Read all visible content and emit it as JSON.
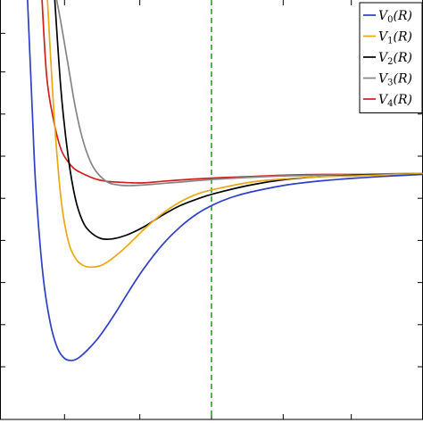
{
  "chart_data": {
    "type": "line",
    "title": "",
    "xlabel": "",
    "ylabel": "",
    "xlim": [
      0.0,
      11.8
    ],
    "ylim": [
      -5.0,
      1.0
    ],
    "grid": false,
    "legend_position": "top-right",
    "reference_line": {
      "x": 5.9,
      "style": "dashed",
      "color": "#2ca02c"
    },
    "x_ticks": [
      1.8,
      3.9,
      5.9,
      7.9,
      9.8
    ],
    "y_ticks": [
      0.5,
      -0.05,
      -0.65,
      -1.25,
      -1.85,
      -2.45,
      -3.05,
      -3.65,
      -4.25
    ],
    "series": [
      {
        "name": "V0(R)",
        "name_main": "V",
        "name_sub": "0",
        "name_arg": "(R)",
        "color": "#2c3fc8",
        "x": [
          0.75,
          0.9,
          1.0,
          1.2,
          1.4,
          1.6,
          1.8,
          2.0,
          2.2,
          2.5,
          2.8,
          3.2,
          3.6,
          4.0,
          4.5,
          5.0,
          5.5,
          6.0,
          6.5,
          7.0,
          8.0,
          9.0,
          10.0,
          11.0,
          11.8
        ],
        "y": [
          1.2,
          -0.6,
          -1.7,
          -2.95,
          -3.62,
          -3.98,
          -4.13,
          -4.16,
          -4.12,
          -3.98,
          -3.8,
          -3.5,
          -3.17,
          -2.86,
          -2.53,
          -2.27,
          -2.07,
          -1.93,
          -1.83,
          -1.76,
          -1.66,
          -1.6,
          -1.56,
          -1.53,
          -1.51
        ]
      },
      {
        "name": "V1(R)",
        "name_main": "V",
        "name_sub": "1",
        "name_arg": "(R)",
        "color": "#e8a912",
        "x": [
          1.3,
          1.5,
          1.7,
          1.9,
          2.1,
          2.3,
          2.5,
          2.8,
          3.1,
          3.5,
          4.0,
          4.5,
          5.0,
          5.5,
          6.0,
          7.0,
          8.0,
          9.0,
          10.0,
          11.0,
          11.8
        ],
        "y": [
          1.2,
          -0.6,
          -1.85,
          -2.45,
          -2.7,
          -2.8,
          -2.83,
          -2.81,
          -2.72,
          -2.55,
          -2.3,
          -2.08,
          -1.91,
          -1.79,
          -1.72,
          -1.62,
          -1.57,
          -1.54,
          -1.53,
          -1.51,
          -1.5
        ]
      },
      {
        "name": "V2(R)",
        "name_main": "V",
        "name_sub": "2",
        "name_arg": "(R)",
        "color": "#000000",
        "x": [
          1.5,
          1.7,
          1.9,
          2.1,
          2.3,
          2.5,
          2.8,
          3.1,
          3.5,
          4.0,
          4.5,
          5.0,
          5.5,
          6.0,
          7.0,
          8.0,
          9.0,
          10.0,
          11.0,
          11.8
        ],
        "y": [
          1.2,
          -0.3,
          -1.25,
          -1.85,
          -2.17,
          -2.32,
          -2.42,
          -2.43,
          -2.38,
          -2.26,
          -2.1,
          -1.96,
          -1.86,
          -1.78,
          -1.66,
          -1.58,
          -1.54,
          -1.52,
          -1.51,
          -1.5
        ]
      },
      {
        "name": "V3(R)",
        "name_main": "V",
        "name_sub": "3",
        "name_arg": "(R)",
        "color": "#848484",
        "x": [
          1.5,
          1.7,
          1.9,
          2.1,
          2.3,
          2.5,
          2.7,
          3.0,
          3.3,
          3.6,
          4.0,
          4.5,
          5.0,
          6.0,
          7.0,
          8.0,
          9.0,
          10.0,
          11.0,
          11.8
        ],
        "y": [
          1.2,
          0.65,
          0.05,
          -0.55,
          -1.0,
          -1.3,
          -1.48,
          -1.62,
          -1.66,
          -1.67,
          -1.66,
          -1.64,
          -1.62,
          -1.58,
          -1.55,
          -1.53,
          -1.52,
          -1.51,
          -1.5,
          -1.5
        ]
      },
      {
        "name": "V4(R)",
        "name_main": "V",
        "name_sub": "4",
        "name_arg": "(R)",
        "color": "#d11f1f",
        "x": [
          1.15,
          1.3,
          1.5,
          1.7,
          1.9,
          2.1,
          2.4,
          2.7,
          3.0,
          3.3,
          3.7,
          4.0,
          4.5,
          5.0,
          6.0,
          7.0,
          8.0,
          9.0,
          10.0,
          11.0,
          11.8
        ],
        "y": [
          1.2,
          -0.1,
          -0.75,
          -1.15,
          -1.33,
          -1.44,
          -1.52,
          -1.58,
          -1.61,
          -1.62,
          -1.63,
          -1.63,
          -1.61,
          -1.59,
          -1.56,
          -1.54,
          -1.52,
          -1.51,
          -1.51,
          -1.5,
          -1.5
        ]
      }
    ]
  }
}
